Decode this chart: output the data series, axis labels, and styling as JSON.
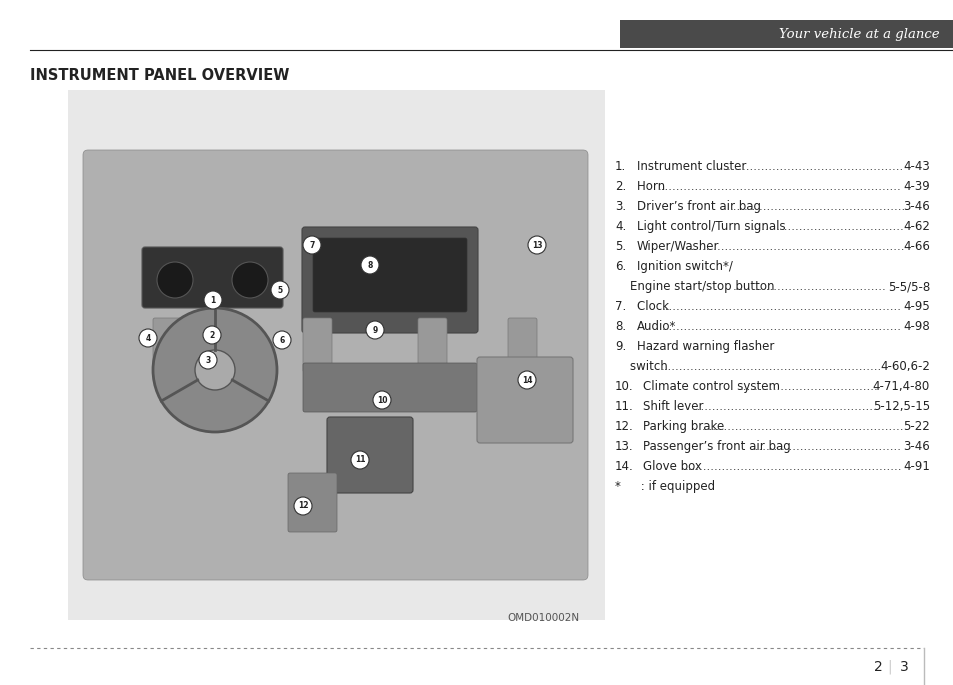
{
  "page_title": "Your vehicle at a glance",
  "section_title": "INSTRUMENT PANEL OVERVIEW",
  "header_bar_color": "#4a4a4a",
  "header_text_color": "#4a4a4a",
  "background_color": "#ffffff",
  "panel_bg_color": "#e8e8e8",
  "list_items": [
    {
      "num": "1.",
      "text": "Instrument cluster",
      "dots": true,
      "page": "4-43"
    },
    {
      "num": "2.",
      "text": "Horn ",
      "dots": true,
      "page": "4-39"
    },
    {
      "num": "3.",
      "text": "Driver’s front air bag",
      "dots": true,
      "page": "3-46"
    },
    {
      "num": "4.",
      "text": "Light control/Turn signals ",
      "dots": true,
      "page": "4-62"
    },
    {
      "num": "5.",
      "text": "Wiper/Washer",
      "dots": true,
      "page": "4-66"
    },
    {
      "num": "6.",
      "text": "Ignition switch*/",
      "dots": false,
      "page": ""
    },
    {
      "num": "",
      "text": "    Engine start/stop button",
      "dots": true,
      "page": "5-5/5-8"
    },
    {
      "num": "7.",
      "text": "Clock ",
      "dots": true,
      "page": "4-95"
    },
    {
      "num": "8.",
      "text": "Audio*",
      "dots": true,
      "page": "4-98"
    },
    {
      "num": "9.",
      "text": "Hazard warning flasher",
      "dots": false,
      "page": ""
    },
    {
      "num": "",
      "text": "    switch ",
      "dots": true,
      "page": "4-60,6-2"
    },
    {
      "num": "10.",
      "text": "Climate control system ",
      "dots": true,
      "page": "4-71,4-80"
    },
    {
      "num": "11.",
      "text": "Shift lever ",
      "dots": true,
      "page": "5-12,5-15"
    },
    {
      "num": "12.",
      "text": "Parking brake ",
      "dots": true,
      "page": "5-22"
    },
    {
      "num": "13.",
      "text": "Passenger’s front air bag ",
      "dots": true,
      "page": "3-46"
    },
    {
      "num": "14.",
      "text": "Glove box ",
      "dots": true,
      "page": "4-91"
    },
    {
      "num": "*",
      "text": " : if equipped",
      "dots": false,
      "page": ""
    }
  ],
  "caption": "OMD010002N",
  "footer_page": "2",
  "footer_page2": "3",
  "text_color": "#222222",
  "dot_color": "#555555"
}
